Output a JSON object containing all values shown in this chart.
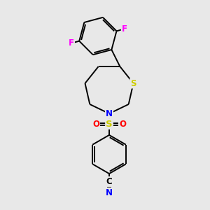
{
  "background_color": "#e8e8e8",
  "atom_colors": {
    "S_ring": "#cccc00",
    "S_sulfonyl": "#cccc00",
    "N": "#0000ff",
    "O": "#ff0000",
    "F": "#ff00ff",
    "C_nitrile": "#000000",
    "N_nitrile": "#0000ff"
  },
  "bond_color": "#000000",
  "figure_size": [
    3.0,
    3.0
  ],
  "dpi": 100,
  "xlim": [
    0,
    10
  ],
  "ylim": [
    0,
    10
  ],
  "lw": 1.4,
  "fs": 8.5
}
